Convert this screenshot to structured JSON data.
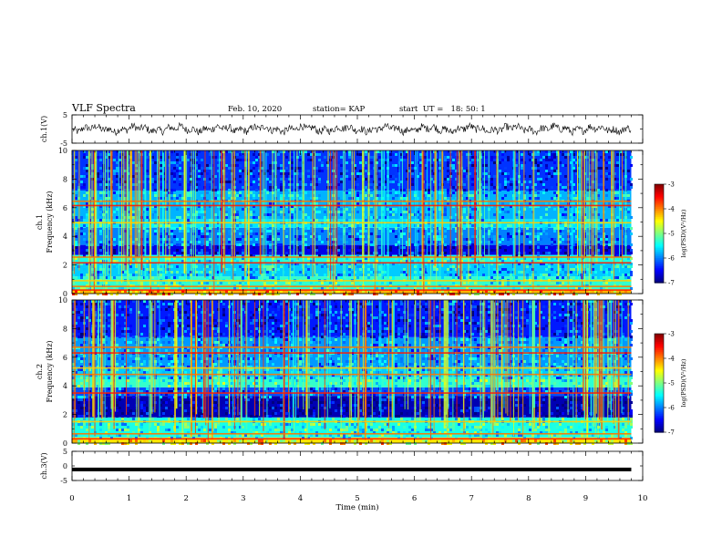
{
  "header": {
    "title": "VLF Spectra",
    "date": "Feb. 10, 2020",
    "station": "station= KAP",
    "start": "start  UT =   18: 50: 1"
  },
  "chart_data": [
    {
      "type": "line",
      "panel": "ch1-waveform",
      "ylabel": "ch.1(V)",
      "ylim": [
        -5,
        5
      ],
      "yticks": [
        "5",
        "-5"
      ],
      "xlim": [
        0,
        10
      ],
      "description_values": {
        "x_range_min": [
          0,
          9.8
        ],
        "signal_mean_V": 0,
        "signal_amplitude_V": 2.5
      }
    },
    {
      "type": "heatmap",
      "panel": "ch1-spectrogram",
      "ylabel": "ch.1\nFrequency (kHz)",
      "ylabel_lines": [
        "ch.1",
        "Frequency (kHz)"
      ],
      "ylim": [
        0,
        10
      ],
      "yticks": [
        "0",
        "2",
        "4",
        "6",
        "8",
        "10"
      ],
      "xlim": [
        0,
        10
      ],
      "data_xmax": 9.8,
      "colorbar": {
        "label": "log(PSD)(V²/Hz)",
        "range": [
          -7,
          -3
        ],
        "ticks": [
          "-3",
          "-4",
          "-5",
          "-6",
          "-7"
        ]
      },
      "bands_khz": [
        {
          "low": 0.0,
          "high": 0.3,
          "level": -4.2
        },
        {
          "low": 0.3,
          "high": 1.2,
          "level": -5.3
        },
        {
          "low": 1.2,
          "high": 2.2,
          "level": -5.7
        },
        {
          "low": 2.2,
          "high": 2.7,
          "level": -5.4
        },
        {
          "low": 2.7,
          "high": 3.4,
          "level": -6.6
        },
        {
          "low": 3.4,
          "high": 4.6,
          "level": -6.0
        },
        {
          "low": 4.6,
          "high": 5.2,
          "level": -5.6
        },
        {
          "low": 5.2,
          "high": 7.2,
          "level": -5.8
        },
        {
          "low": 7.2,
          "high": 10.0,
          "level": -6.3
        }
      ],
      "lines_khz": [
        0.25,
        0.5,
        0.9,
        2.15,
        2.55,
        4.95,
        6.15,
        6.45
      ]
    },
    {
      "type": "heatmap",
      "panel": "ch2-spectrogram",
      "ylabel": "ch.2\nFrequency (kHz)",
      "ylabel_lines": [
        "ch.2",
        "Frequency (kHz)"
      ],
      "ylim": [
        0,
        10
      ],
      "yticks": [
        "0",
        "2",
        "4",
        "6",
        "8",
        "10"
      ],
      "xlim": [
        0,
        10
      ],
      "data_xmax": 9.8,
      "colorbar": {
        "label": "log(PSD)(V²/Hz)",
        "range": [
          -7,
          -3
        ],
        "ticks": [
          "-3",
          "-4",
          "-5",
          "-6",
          "-7"
        ]
      },
      "bands_khz": [
        {
          "low": 0.0,
          "high": 0.4,
          "level": -4.4
        },
        {
          "low": 0.4,
          "high": 1.8,
          "level": -5.4
        },
        {
          "low": 1.8,
          "high": 3.3,
          "level": -6.8
        },
        {
          "low": 3.3,
          "high": 3.9,
          "level": -6.2
        },
        {
          "low": 3.9,
          "high": 4.6,
          "level": -5.3
        },
        {
          "low": 4.6,
          "high": 5.3,
          "level": -5.7
        },
        {
          "low": 5.3,
          "high": 7.4,
          "level": -5.9
        },
        {
          "low": 7.4,
          "high": 10.0,
          "level": -6.4
        }
      ],
      "lines_khz": [
        0.3,
        0.65,
        1.5,
        3.5,
        4.8,
        5.25,
        6.3,
        6.7
      ]
    },
    {
      "type": "line",
      "panel": "ch3-waveform",
      "ylabel": "ch.3(V)",
      "ylim": [
        -5,
        5
      ],
      "yticks": [
        "5",
        "0",
        "-5"
      ],
      "xlim": [
        0,
        10
      ],
      "xlabel": "Time  (min)",
      "xticks": [
        "0",
        "1",
        "2",
        "3",
        "4",
        "5",
        "6",
        "7",
        "8",
        "9",
        "10"
      ],
      "series": [
        {
          "x": [
            0,
            9.8
          ],
          "y": [
            -1.2,
            -1.2
          ]
        }
      ]
    }
  ]
}
